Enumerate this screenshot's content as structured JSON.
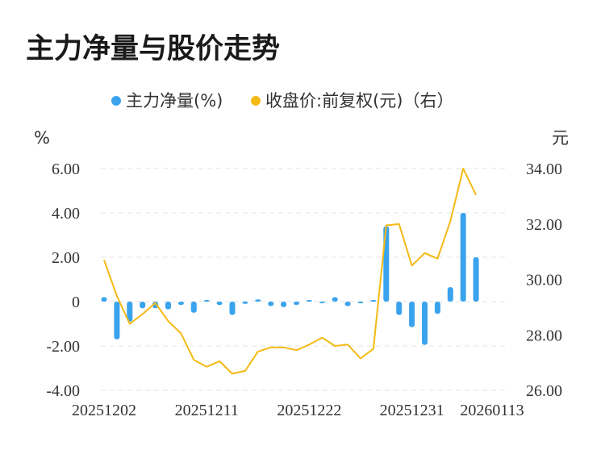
{
  "title": "主力净量与股价走势",
  "colors": {
    "bar": "#3aa3ee",
    "line": "#f5b914",
    "grid": "#e3e3e3"
  },
  "chart_data": {
    "type": "bar+line",
    "legend_position": "top",
    "grid": true,
    "left_axis": {
      "unit": "%",
      "ticks": [
        "6.00",
        "4.00",
        "2.00",
        "0",
        "-2.00",
        "-4.00"
      ],
      "range": [
        -4,
        6
      ]
    },
    "right_axis": {
      "unit": "元",
      "ticks": [
        "34.00",
        "32.00",
        "30.00",
        "28.00",
        "26.00"
      ],
      "range": [
        26,
        34
      ]
    },
    "x_ticks": [
      "20251202",
      "20251211",
      "20251222",
      "20251231",
      "20260113"
    ],
    "series": [
      {
        "name": "主力净量(%)",
        "kind": "bar",
        "axis": "left",
        "values": [
          0.2,
          -1.7,
          -0.9,
          -0.3,
          -0.3,
          -0.35,
          -0.15,
          -0.5,
          0,
          -0.15,
          -0.6,
          -0.1,
          0.1,
          -0.2,
          -0.25,
          -0.15,
          0.02,
          -0.05,
          0.2,
          -0.2,
          -0.05,
          0,
          3.4,
          -0.6,
          -1.15,
          -1.95,
          -0.55,
          0.65,
          4.0,
          2.0
        ]
      },
      {
        "name": "收盘价:前复权(元)（右）",
        "kind": "line",
        "axis": "right",
        "values": [
          30.7,
          29.4,
          28.4,
          28.75,
          29.15,
          28.5,
          28.05,
          27.1,
          26.85,
          27.05,
          26.6,
          26.7,
          27.4,
          27.55,
          27.55,
          27.45,
          27.65,
          27.9,
          27.6,
          27.65,
          27.15,
          27.5,
          31.95,
          32.0,
          30.5,
          30.95,
          30.75,
          32.1,
          34.0,
          33.05
        ]
      }
    ]
  }
}
